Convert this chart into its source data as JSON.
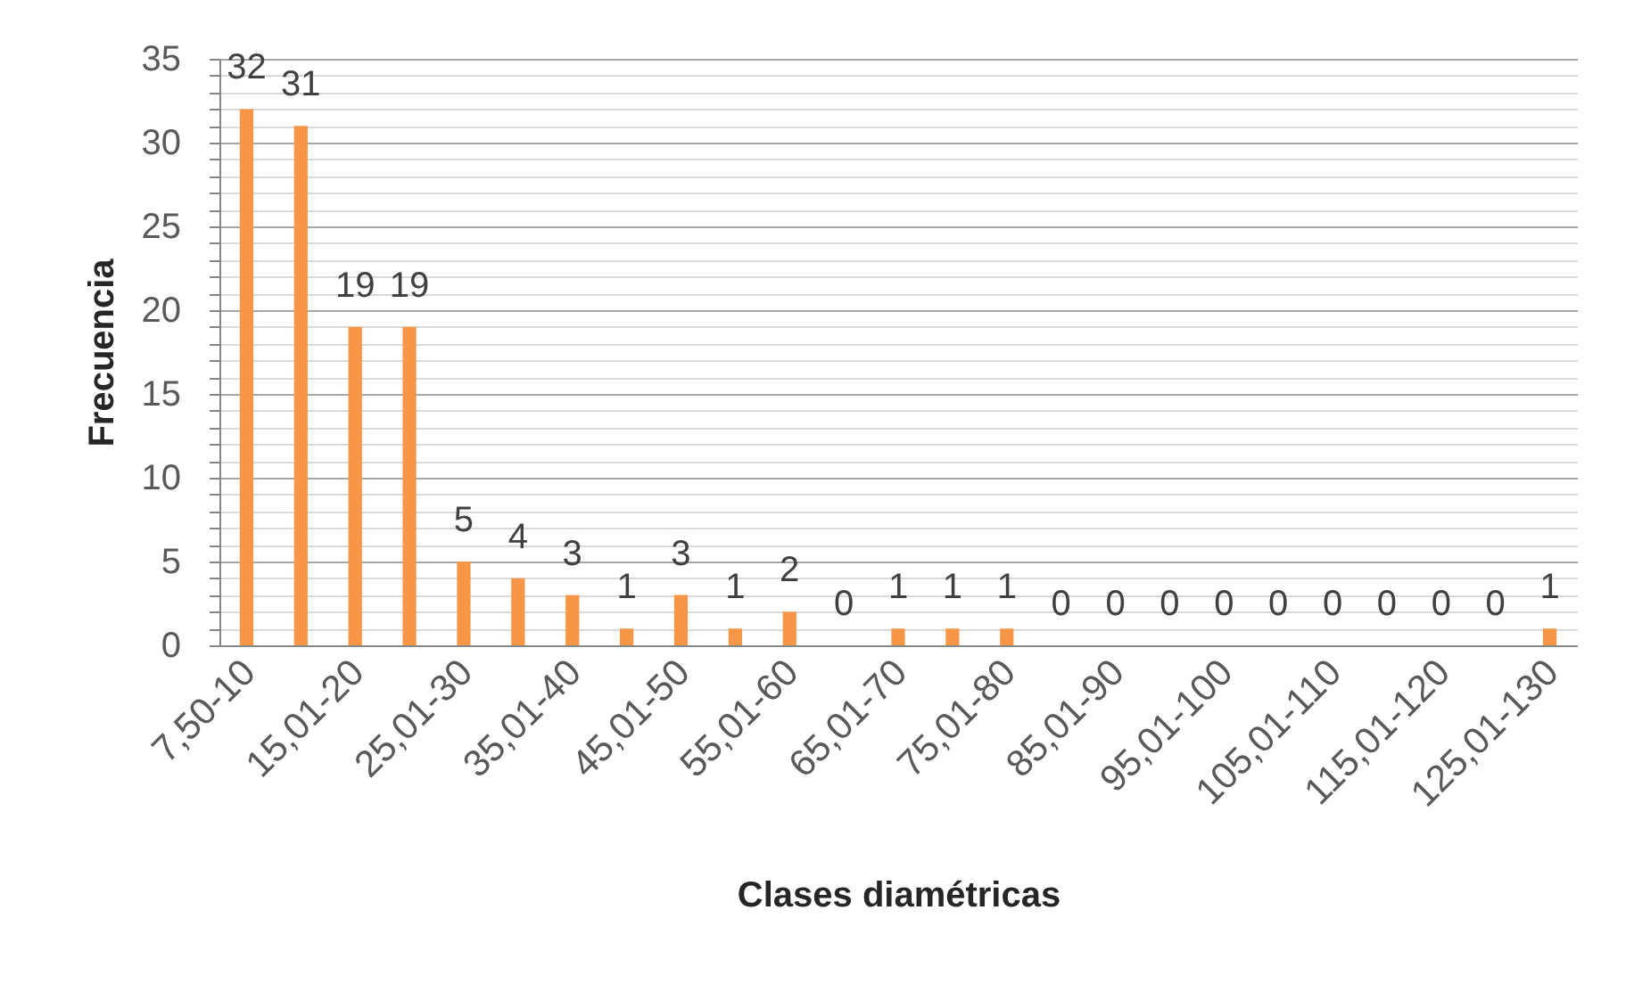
{
  "chart_data": {
    "type": "bar",
    "xlabel": "Clases diamétricas",
    "ylabel": "Frecuencia",
    "categories": [
      "7,50-10",
      null,
      "15,01-20",
      null,
      "25,01-30",
      null,
      "35,01-40",
      null,
      "45,01-50",
      null,
      "55,01-60",
      null,
      "65,01-70",
      null,
      "75,01-80",
      null,
      "85,01-90",
      null,
      "95,01-100",
      null,
      "105,01-110",
      null,
      "115,01-120",
      null,
      "125,01-130"
    ],
    "values": [
      32,
      31,
      19,
      19,
      5,
      4,
      3,
      1,
      3,
      1,
      2,
      0,
      1,
      1,
      1,
      0,
      0,
      0,
      0,
      0,
      0,
      0,
      0,
      0,
      1
    ],
    "color": "#f79646",
    "ylim": [
      0,
      35
    ],
    "yticks": [
      0,
      {
        "value": 1,
        "label": null
      },
      {
        "value": 2,
        "label": null
      },
      {
        "value": 3,
        "label": null
      },
      {
        "value": 4,
        "label": null
      },
      5,
      {
        "value": 6,
        "label": null
      },
      {
        "value": 7,
        "label": null
      },
      {
        "value": 8,
        "label": null
      },
      {
        "value": 9,
        "label": null
      },
      10,
      {
        "value": 11,
        "label": null
      },
      {
        "value": 12,
        "label": null
      },
      {
        "value": 13,
        "label": null
      },
      {
        "value": 14,
        "label": null
      },
      15,
      {
        "value": 16,
        "label": null
      },
      {
        "value": 17,
        "label": null
      },
      {
        "value": 18,
        "label": null
      },
      {
        "value": 19,
        "label": null
      },
      20,
      {
        "value": 21,
        "label": null
      },
      {
        "value": 22,
        "label": null
      },
      {
        "value": 23,
        "label": null
      },
      {
        "value": 24,
        "label": null
      },
      25,
      {
        "value": 26,
        "label": null
      },
      {
        "value": 27,
        "label": null
      },
      {
        "value": 28,
        "label": null
      },
      {
        "value": 29,
        "label": null
      },
      30,
      {
        "value": 31,
        "label": null
      },
      {
        "value": 32,
        "label": null
      },
      {
        "value": 33,
        "label": null
      },
      {
        "value": 34,
        "label": null
      },
      35
    ],
    "grid": "y",
    "data_labels": true
  }
}
